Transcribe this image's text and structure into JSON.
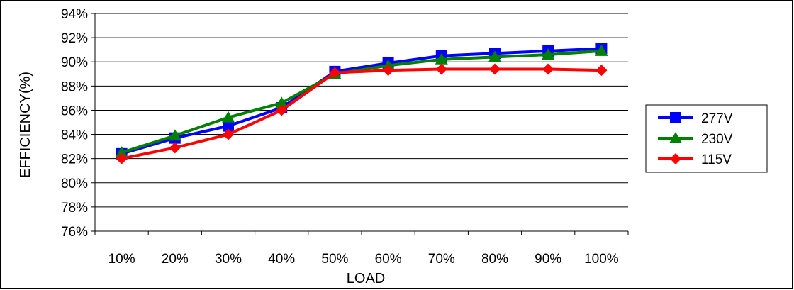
{
  "chart_data": {
    "type": "line",
    "xlabel": "LOAD",
    "ylabel": "EFFICIENCY(%)",
    "categories": [
      "10%",
      "20%",
      "30%",
      "40%",
      "50%",
      "60%",
      "70%",
      "80%",
      "90%",
      "100%"
    ],
    "ylim": [
      76,
      94
    ],
    "yticks": [
      "76%",
      "78%",
      "80%",
      "82%",
      "84%",
      "86%",
      "88%",
      "90%",
      "92%",
      "94%"
    ],
    "grid": "horizontal",
    "legend_position": "right",
    "series": [
      {
        "name": "277V",
        "color": "#0000FF",
        "marker": "square",
        "values": [
          82.4,
          83.7,
          84.7,
          86.2,
          89.2,
          89.9,
          90.5,
          90.7,
          90.9,
          91.1
        ]
      },
      {
        "name": "230V",
        "color": "#008000",
        "marker": "triangle",
        "values": [
          82.5,
          83.9,
          85.4,
          86.6,
          89.0,
          89.7,
          90.2,
          90.4,
          90.6,
          90.9
        ]
      },
      {
        "name": "115V",
        "color": "#FF0000",
        "marker": "diamond",
        "values": [
          82.0,
          82.9,
          84.0,
          86.0,
          89.1,
          89.3,
          89.4,
          89.4,
          89.4,
          89.3
        ]
      }
    ]
  }
}
